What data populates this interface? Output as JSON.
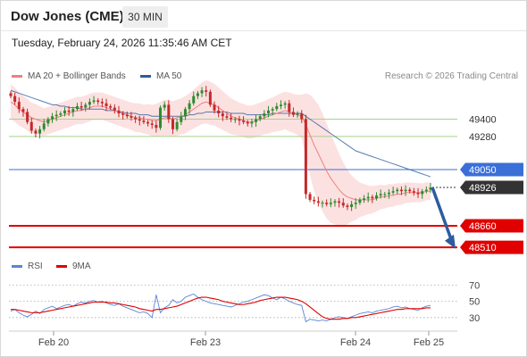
{
  "header": {
    "title": "Dow Jones (CME)",
    "timeframe": "30 MIN"
  },
  "datetime": "Tuesday, February 24, 2026 11:35:46 AM CET",
  "legend": {
    "ma20": {
      "label": "MA 20 + Bollinger Bands",
      "color": "#f08080"
    },
    "ma50": {
      "label": "MA 50",
      "color": "#2e5c9e"
    }
  },
  "copyright": "Research © 2026 Trading Central",
  "rsi_legend": {
    "rsi": {
      "label": "RSI",
      "color": "#5b83d6"
    },
    "ma9": {
      "label": "9MA",
      "color": "#e00000"
    }
  },
  "chart_data": [
    {
      "type": "candlestick",
      "title": "",
      "x_ticks": [
        "Feb 20",
        "Feb 23",
        "Feb 24",
        "Feb 25"
      ],
      "y_range": [
        48480,
        49620
      ],
      "levels": [
        {
          "label": "49400",
          "value": 49400,
          "color": "#a8d08d",
          "style": "resistance"
        },
        {
          "label": "49280",
          "value": 49280,
          "color": "#a8d08d",
          "style": "resistance"
        },
        {
          "label": "49050",
          "value": 49050,
          "color": "#3a6fd8",
          "style": "pivot"
        },
        {
          "label": "48926",
          "value": 48926,
          "color": "#333333",
          "style": "last"
        },
        {
          "label": "48660",
          "value": 48660,
          "color": "#e00000",
          "style": "support"
        },
        {
          "label": "48510",
          "value": 48510,
          "color": "#e00000",
          "style": "support"
        }
      ],
      "forecast_arrow": {
        "from": 48926,
        "to": 48500,
        "color": "#2e5c9e"
      },
      "closes": [
        49560,
        49520,
        49470,
        49450,
        49380,
        49320,
        49300,
        49330,
        49370,
        49400,
        49420,
        49430,
        49440,
        49460,
        49450,
        49470,
        49490,
        49480,
        49500,
        49520,
        49530,
        49520,
        49510,
        49490,
        49480,
        49460,
        49440,
        49430,
        49420,
        49410,
        49400,
        49390,
        49380,
        49370,
        49360,
        49340,
        49480,
        49500,
        49400,
        49330,
        49380,
        49420,
        49470,
        49510,
        49560,
        49580,
        49600,
        49590,
        49500,
        49460,
        49440,
        49420,
        49410,
        49400,
        49400,
        49390,
        49380,
        49370,
        49380,
        49400,
        49420,
        49440,
        49460,
        49470,
        49490,
        49500,
        49510,
        49450,
        49430,
        49440,
        49400,
        48880,
        48840,
        48830,
        48820,
        48820,
        48810,
        48820,
        48830,
        48820,
        48800,
        48790,
        48810,
        48820,
        48840,
        48850,
        48860,
        48850,
        48870,
        48880,
        48880,
        48890,
        48900,
        48910,
        48900,
        48910,
        48900,
        48890,
        48880,
        48900,
        48910,
        48926
      ],
      "ma20": [
        49520,
        49500,
        49470,
        49450,
        49430,
        49410,
        49400,
        49390,
        49380,
        49390,
        49400,
        49410,
        49420,
        49430,
        49440,
        49450,
        49460,
        49460,
        49470,
        49480,
        49490,
        49490,
        49490,
        49480,
        49470,
        49460,
        49450,
        49440,
        49430,
        49420,
        49410,
        49410,
        49400,
        49400,
        49390,
        49390,
        49400,
        49410,
        49410,
        49400,
        49410,
        49420,
        49430,
        49450,
        49470,
        49490,
        49510,
        49520,
        49510,
        49500,
        49480,
        49460,
        49440,
        49420,
        49410,
        49400,
        49390,
        49380,
        49380,
        49390,
        49400,
        49410,
        49420,
        49430,
        49440,
        49450,
        49460,
        49450,
        49440,
        49430,
        49420,
        49360,
        49290,
        49220,
        49160,
        49100,
        49040,
        48990,
        48950,
        48910,
        48880,
        48860,
        48850,
        48840,
        48840,
        48840,
        48840,
        48840,
        48850,
        48860,
        48860,
        48870,
        48870,
        48880,
        48880,
        48890,
        48890,
        48890,
        48890,
        48890,
        48900,
        48900
      ],
      "ma50": [
        49600,
        49590,
        49580,
        49570,
        49560,
        49550,
        49540,
        49530,
        49520,
        49510,
        49500,
        49500,
        49490,
        49490,
        49480,
        49480,
        49480,
        49470,
        49470,
        49470,
        49470,
        49470,
        49470,
        49460,
        49460,
        49460,
        49450,
        49450,
        49440,
        49440,
        49440,
        49430,
        49430,
        49430,
        49420,
        49420,
        49420,
        49420,
        49420,
        49420,
        49420,
        49420,
        49420,
        49430,
        49430,
        49440,
        49440,
        49450,
        49450,
        49450,
        49450,
        49450,
        49450,
        49440,
        49440,
        49440,
        49440,
        49430,
        49430,
        49430,
        49430,
        49430,
        49430,
        49440,
        49440,
        49440,
        49440,
        49440,
        49440,
        49440,
        49440,
        49420,
        49400,
        49380,
        49360,
        49340,
        49320,
        49300,
        49280,
        49260,
        49240,
        49220,
        49200,
        49180,
        49170,
        49160,
        49150,
        49140,
        49130,
        49120,
        49110,
        49100,
        49090,
        49080,
        49070,
        49060,
        49050,
        49040,
        49030,
        49020,
        49010,
        49000
      ],
      "band_width": [
        120,
        120,
        115,
        110,
        110,
        105,
        105,
        100,
        95,
        95,
        95,
        95,
        95,
        95,
        95,
        95,
        95,
        95,
        95,
        95,
        95,
        95,
        95,
        95,
        95,
        95,
        95,
        95,
        95,
        95,
        100,
        100,
        100,
        105,
        110,
        115,
        120,
        125,
        125,
        125,
        125,
        125,
        130,
        130,
        135,
        140,
        145,
        150,
        150,
        145,
        140,
        135,
        130,
        125,
        120,
        115,
        115,
        115,
        115,
        115,
        115,
        115,
        120,
        120,
        125,
        130,
        130,
        135,
        135,
        140,
        150,
        220,
        280,
        320,
        340,
        340,
        330,
        310,
        280,
        250,
        220,
        190,
        160,
        140,
        120,
        110,
        100,
        95,
        90,
        85,
        80,
        80,
        78,
        76,
        74,
        72,
        70,
        68,
        66,
        64,
        62,
        60
      ]
    },
    {
      "type": "line",
      "title": "",
      "y_ticks": [
        70,
        50,
        30
      ],
      "ylim": [
        20,
        78
      ],
      "series": [
        {
          "name": "RSI",
          "values": [
            38,
            40,
            36,
            33,
            31,
            34,
            38,
            35,
            40,
            42,
            44,
            41,
            43,
            45,
            46,
            44,
            47,
            49,
            48,
            50,
            51,
            49,
            50,
            48,
            46,
            45,
            47,
            44,
            42,
            40,
            38,
            36,
            37,
            35,
            30,
            58,
            36,
            42,
            45,
            52,
            48,
            50,
            55,
            57,
            59,
            55,
            52,
            50,
            48,
            47,
            46,
            45,
            44,
            43,
            45,
            47,
            49,
            50,
            52,
            54,
            56,
            58,
            57,
            54,
            52,
            55,
            53,
            50,
            48,
            46,
            45,
            25,
            28,
            27,
            26,
            27,
            26,
            28,
            30,
            31,
            30,
            29,
            31,
            33,
            35,
            36,
            37,
            36,
            38,
            39,
            40,
            41,
            43,
            44,
            42,
            43,
            41,
            40,
            39,
            42,
            44,
            45
          ]
        },
        {
          "name": "9MA",
          "values": [
            40,
            40,
            39,
            38,
            37,
            36,
            36,
            36,
            37,
            38,
            39,
            40,
            41,
            42,
            43,
            44,
            45,
            46,
            47,
            48,
            49,
            49,
            49,
            49,
            48,
            48,
            47,
            46,
            45,
            44,
            43,
            41,
            40,
            39,
            38,
            40,
            40,
            41,
            42,
            43,
            44,
            46,
            48,
            50,
            52,
            54,
            55,
            55,
            54,
            53,
            52,
            50,
            49,
            48,
            47,
            46,
            46,
            47,
            48,
            49,
            51,
            52,
            53,
            54,
            55,
            55,
            55,
            54,
            53,
            52,
            50,
            47,
            43,
            39,
            35,
            31,
            29,
            28,
            28,
            28,
            29,
            29,
            30,
            30,
            31,
            32,
            33,
            34,
            35,
            36,
            37,
            38,
            39,
            40,
            40,
            41,
            41,
            41,
            41,
            41,
            42,
            42
          ]
        }
      ]
    }
  ]
}
